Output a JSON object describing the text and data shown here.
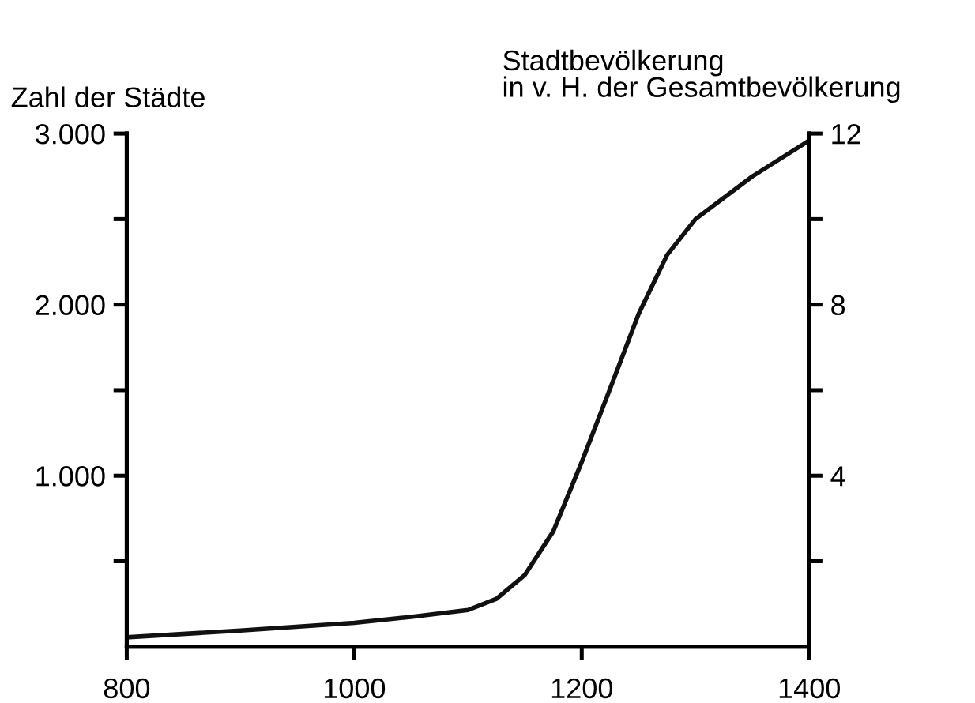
{
  "chart_data": {
    "type": "line",
    "ylabel": "Zahl der Städte",
    "y2label": "Stadtbevölkerung\nin v. H. der Gesamtbevölkerung",
    "x": [
      800,
      900,
      1000,
      1050,
      1100,
      1125,
      1150,
      1175,
      1200,
      1225,
      1250,
      1275,
      1300,
      1350,
      1400
    ],
    "series": [
      {
        "color": "#111111",
        "values": [
          55,
          95,
          140,
          175,
          215,
          280,
          420,
          675,
          1080,
          1510,
          1945,
          2290,
          2500,
          2750,
          2960
        ]
      }
    ],
    "xlim": [
      800,
      1400
    ],
    "xticks": [
      800,
      1000,
      1200,
      1400
    ],
    "ylim": [
      0,
      3000
    ],
    "yticks": [
      {
        "value": 500,
        "label": null
      },
      {
        "value": 1000,
        "label": "1.000"
      },
      {
        "value": 1500,
        "label": null
      },
      {
        "value": 2000,
        "label": "2.000"
      },
      {
        "value": 2500,
        "label": null
      },
      {
        "value": 3000,
        "label": "3.000"
      }
    ],
    "y2lim": [
      0,
      12
    ],
    "y2ticks": [
      {
        "value": 2,
        "label": null
      },
      4,
      {
        "value": 6,
        "label": null
      },
      8,
      {
        "value": 10,
        "label": null
      },
      12
    ],
    "grid": false,
    "legend": false,
    "line_style": "solid"
  }
}
